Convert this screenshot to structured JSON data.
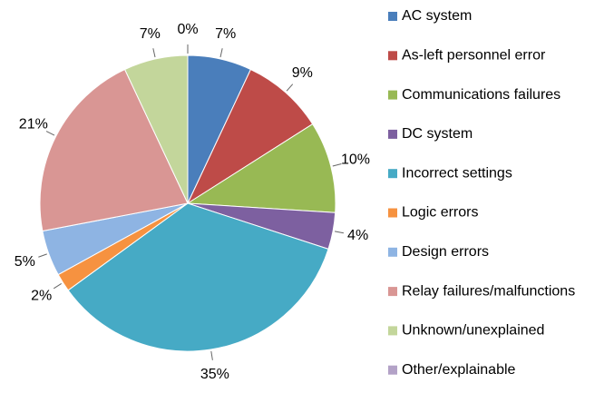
{
  "chart_data": {
    "type": "pie",
    "categories": [
      "AC system",
      "As-left personnel error",
      "Communications failures",
      "DC system",
      "Incorrect settings",
      "Logic errors",
      "Design errors",
      "Relay failures/malfunctions",
      "Unknown/unexplained",
      "Other/explainable"
    ],
    "values": [
      7,
      9,
      10,
      4,
      35,
      2,
      5,
      21,
      7,
      0
    ],
    "value_labels": [
      "7%",
      "9%",
      "10%",
      "4%",
      "35%",
      "2%",
      "5%",
      "21%",
      "7%",
      "0%"
    ],
    "colors": [
      "#4a7ebb",
      "#be4b48",
      "#98b954",
      "#7d60a0",
      "#46aac5",
      "#f69240",
      "#8eb4e3",
      "#d99694",
      "#c3d69b",
      "#b3a2c7"
    ],
    "legend": "right"
  }
}
